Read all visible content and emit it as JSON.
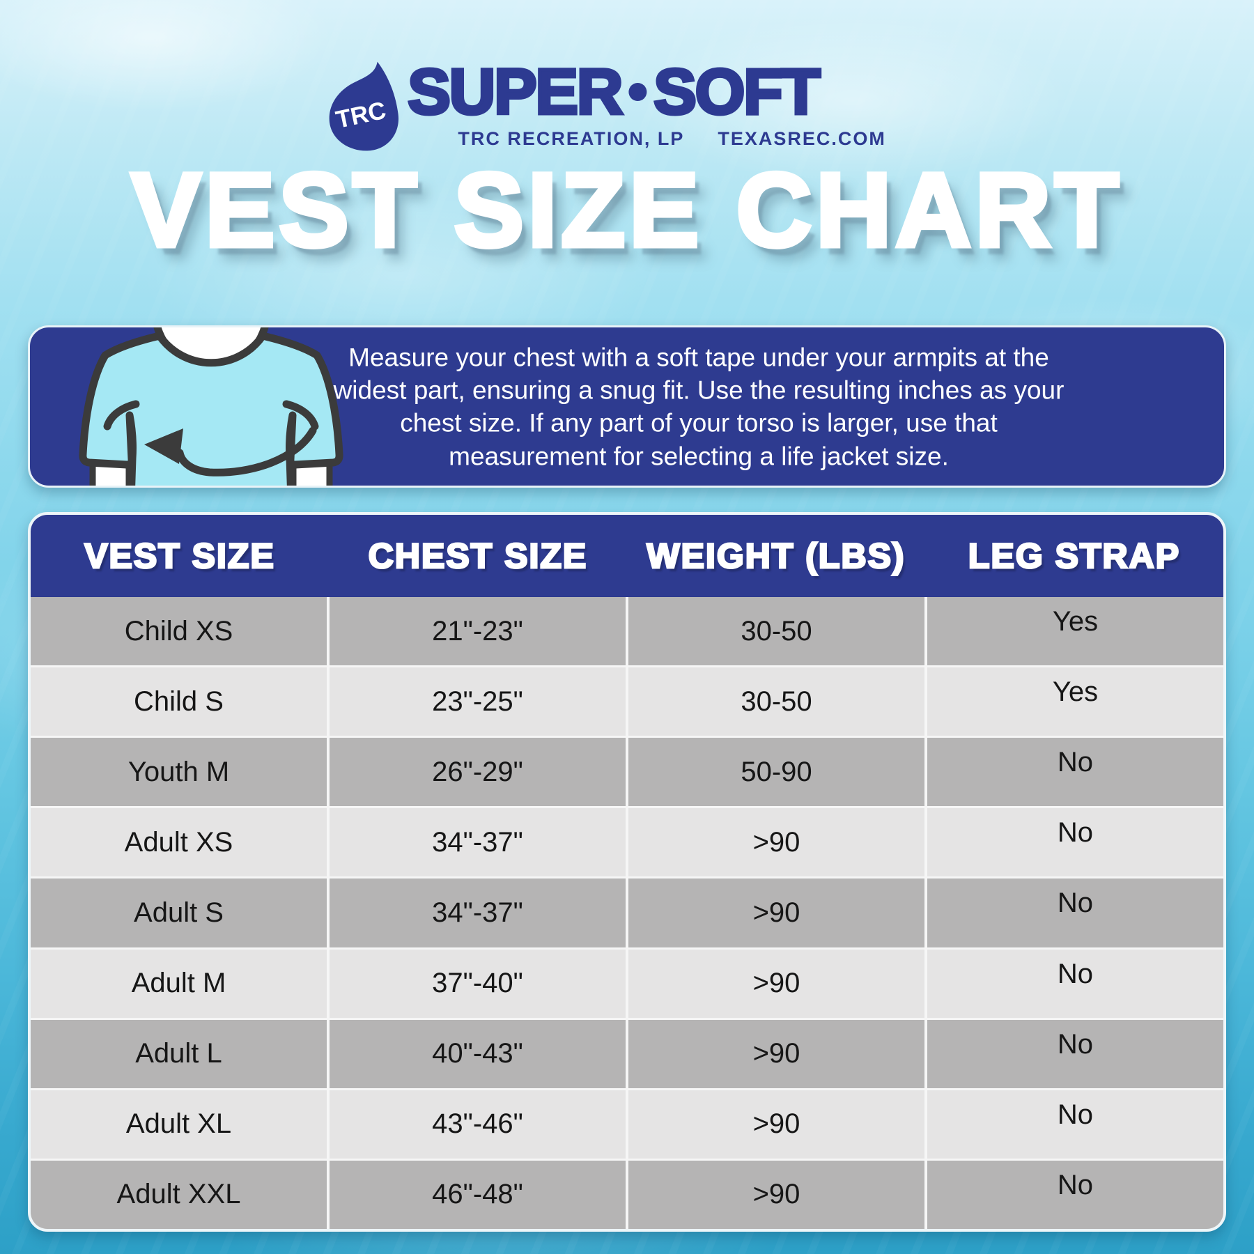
{
  "logo": {
    "drop_text": "TRC",
    "brand_left": "SUPER",
    "brand_dot": "•",
    "brand_right": "SOFT",
    "sub_left": "TRC RECREATION, LP",
    "sub_right": "TEXASREC.COM"
  },
  "title": "VEST SIZE CHART",
  "instruction": {
    "text": "Measure your chest with a soft tape under your armpits at the widest part, ensuring a snug fit. Use the resulting inches as your chest size. If any part of your torso is larger, use that measurement for selecting a life jacket size."
  },
  "table": {
    "headers": [
      "VEST SIZE",
      "CHEST SIZE",
      "WEIGHT (LBS)",
      "LEG STRAP"
    ],
    "rows": [
      [
        "Child XS",
        "21\"-23\"",
        "30-50",
        "Yes"
      ],
      [
        "Child S",
        "23\"-25\"",
        "30-50",
        "Yes"
      ],
      [
        "Youth M",
        "26\"-29\"",
        "50-90",
        "No"
      ],
      [
        "Adult XS",
        "34\"-37\"",
        ">90",
        "No"
      ],
      [
        "Adult S",
        "34\"-37\"",
        ">90",
        "No"
      ],
      [
        "Adult M",
        "37\"-40\"",
        ">90",
        "No"
      ],
      [
        "Adult L",
        "40\"-43\"",
        ">90",
        "No"
      ],
      [
        "Adult XL",
        "43\"-46\"",
        ">90",
        "No"
      ],
      [
        "Adult XXL",
        "46\"-48\"",
        ">90",
        "No"
      ]
    ]
  },
  "colors": {
    "brand_navy": "#2d3a91",
    "box_blue": "#2e3b90",
    "row_dark": "#b5b4b4",
    "row_light": "#e5e4e4",
    "shirt_cyan": "#a5e8f4",
    "outline_dark": "#3b3b3b",
    "water_top": "#d9f2fa",
    "water_bottom": "#2da0c7"
  }
}
